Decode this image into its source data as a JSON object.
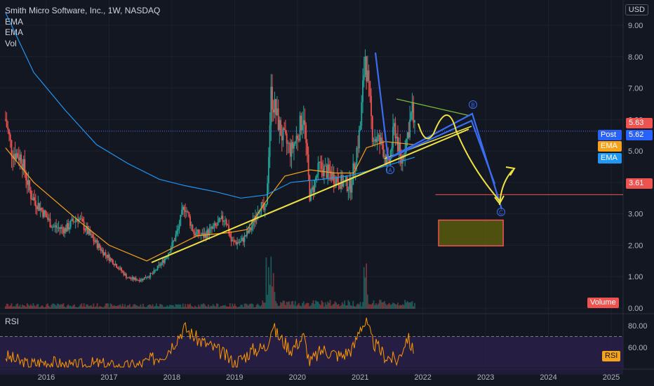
{
  "legend": {
    "title": "Smith Micro Software, Inc., 1W, NASDAQ",
    "ema1": "EMA",
    "ema2": "EMA",
    "vol": "Vol",
    "rsi": "RSI"
  },
  "currency_button": "USD",
  "price_tags": {
    "last": "5.63",
    "post_label": "Post",
    "post_value": "5.62",
    "ema1_label": "EMA",
    "ema2_label": "EMA",
    "level": "3.61",
    "volume_label": "Volume",
    "rsi_label": "RSI"
  },
  "markers": {
    "a": "A",
    "b": "B",
    "c": "C"
  },
  "colors": {
    "background": "#131722",
    "up": "#26a69a",
    "down": "#ef5350",
    "ema_orange": "#f7a21b",
    "ema_blue": "#2196f3",
    "trendline": "#f0e442",
    "pattern_blue": "#2962ff",
    "rsi": "#ff9800",
    "rsi_band": "#2a1f4a"
  },
  "chart_data": [
    {
      "type": "candlestick",
      "title": "Smith Micro Software, Inc., 1W, NASDAQ",
      "ylabel": "USD",
      "ylim": [
        -0.5,
        9.4
      ],
      "y_ticks": [
        "9.00",
        "8.00",
        "7.00",
        "6.00",
        "5.00",
        "4.00",
        "3.00",
        "2.00",
        "1.00",
        "0.00"
      ],
      "x_ticks": [
        "2016",
        "2017",
        "2018",
        "2019",
        "2020",
        "2021",
        "2022",
        "2023",
        "2024",
        "2025"
      ],
      "xlim": [
        2015.3,
        2025.2
      ],
      "price_path": [
        [
          2015.35,
          6.0
        ],
        [
          2015.45,
          5.0
        ],
        [
          2015.6,
          4.8
        ],
        [
          2015.75,
          3.6
        ],
        [
          2015.9,
          3.2
        ],
        [
          2016.1,
          2.6
        ],
        [
          2016.3,
          2.5
        ],
        [
          2016.5,
          2.9
        ],
        [
          2016.7,
          2.3
        ],
        [
          2016.9,
          1.8
        ],
        [
          2017.1,
          1.4
        ],
        [
          2017.3,
          0.95
        ],
        [
          2017.5,
          0.9
        ],
        [
          2017.7,
          1.1
        ],
        [
          2017.9,
          1.6
        ],
        [
          2018.0,
          2.0
        ],
        [
          2018.1,
          2.5
        ],
        [
          2018.2,
          3.3
        ],
        [
          2018.35,
          2.4
        ],
        [
          2018.5,
          2.3
        ],
        [
          2018.7,
          2.6
        ],
        [
          2018.85,
          2.9
        ],
        [
          2018.95,
          2.1
        ],
        [
          2019.1,
          2.1
        ],
        [
          2019.25,
          2.5
        ],
        [
          2019.4,
          3.3
        ],
        [
          2019.5,
          3.0
        ],
        [
          2019.58,
          6.8
        ],
        [
          2019.75,
          5.5
        ],
        [
          2019.9,
          5.0
        ],
        [
          2020.0,
          5.5
        ],
        [
          2020.1,
          6.2
        ],
        [
          2020.2,
          3.5
        ],
        [
          2020.35,
          4.5
        ],
        [
          2020.5,
          4.3
        ],
        [
          2020.7,
          4.0
        ],
        [
          2020.85,
          3.9
        ],
        [
          2021.0,
          5.7
        ],
        [
          2021.08,
          8.1
        ],
        [
          2021.2,
          5.5
        ],
        [
          2021.35,
          5.2
        ],
        [
          2021.45,
          4.5
        ],
        [
          2021.55,
          5.8
        ],
        [
          2021.65,
          4.6
        ],
        [
          2021.75,
          5.5
        ],
        [
          2021.83,
          6.3
        ],
        [
          2021.87,
          5.63
        ]
      ],
      "ema_orange_path": [
        [
          2015.35,
          5.1
        ],
        [
          2015.8,
          4.0
        ],
        [
          2016.5,
          2.8
        ],
        [
          2017.0,
          2.0
        ],
        [
          2017.6,
          1.5
        ],
        [
          2018.0,
          1.9
        ],
        [
          2018.4,
          2.3
        ],
        [
          2018.9,
          2.4
        ],
        [
          2019.2,
          2.5
        ],
        [
          2019.5,
          3.4
        ],
        [
          2019.8,
          4.2
        ],
        [
          2020.2,
          4.4
        ],
        [
          2020.6,
          4.3
        ],
        [
          2020.9,
          4.3
        ],
        [
          2021.1,
          5.1
        ],
        [
          2021.4,
          5.3
        ],
        [
          2021.87,
          5.2
        ]
      ],
      "ema_blue_path": [
        [
          2015.35,
          9.4
        ],
        [
          2015.8,
          7.5
        ],
        [
          2016.3,
          6.3
        ],
        [
          2016.8,
          5.2
        ],
        [
          2017.3,
          4.6
        ],
        [
          2017.8,
          4.1
        ],
        [
          2018.2,
          3.9
        ],
        [
          2018.7,
          3.7
        ],
        [
          2019.1,
          3.5
        ],
        [
          2019.5,
          3.6
        ],
        [
          2019.9,
          4.0
        ],
        [
          2020.4,
          4.1
        ],
        [
          2020.8,
          4.2
        ],
        [
          2021.2,
          4.4
        ],
        [
          2021.87,
          4.8
        ]
      ],
      "last_price": 5.63,
      "post_price": 5.62,
      "horizontal_level": 3.61,
      "target_zone": {
        "x": [
          2022.25,
          2023.28
        ],
        "y": [
          1.98,
          2.8
        ]
      }
    },
    {
      "type": "bar",
      "title": "Volume",
      "note": "weekly volume bars along the bottom of the price pane"
    },
    {
      "type": "line",
      "title": "RSI",
      "y_ticks": [
        "80.00",
        "60.00"
      ],
      "ylim": [
        35,
        90
      ],
      "bands": [
        70,
        30
      ],
      "x": [
        2015.35,
        2015.7,
        2016.0,
        2016.4,
        2016.8,
        2017.2,
        2017.5,
        2017.9,
        2018.0,
        2018.2,
        2018.4,
        2018.8,
        2019.0,
        2019.3,
        2019.5,
        2019.6,
        2019.7,
        2019.9,
        2020.1,
        2020.2,
        2020.4,
        2020.7,
        2020.9,
        2021.0,
        2021.1,
        2021.2,
        2021.4,
        2021.6,
        2021.75,
        2021.85
      ],
      "values": [
        52,
        44,
        47,
        42,
        45,
        41,
        44,
        55,
        62,
        78,
        68,
        55,
        45,
        58,
        60,
        80,
        70,
        58,
        70,
        46,
        58,
        52,
        60,
        80,
        82,
        65,
        52,
        48,
        70,
        56
      ]
    }
  ]
}
